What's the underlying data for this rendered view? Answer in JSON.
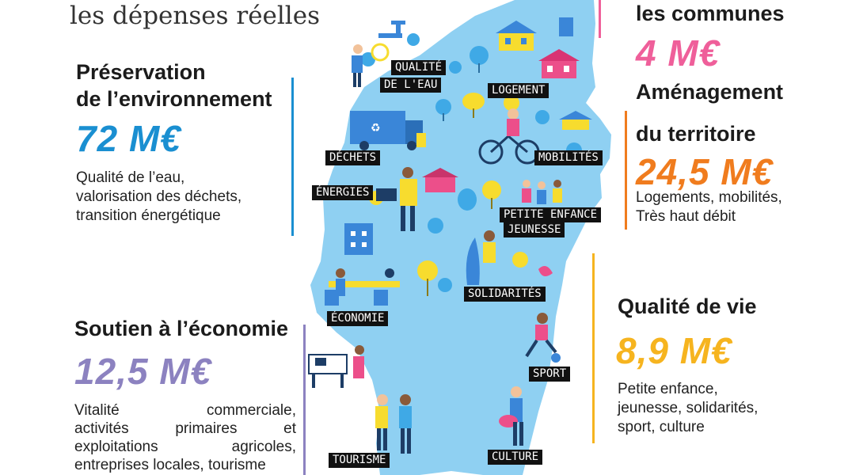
{
  "title_line": "les dépenses réelles",
  "left_top": {
    "heading_line1": "Préservation",
    "heading_line2": "de l’environnement",
    "amount": "72 M€",
    "desc_line1": "Qualité de l’eau,",
    "desc_line2": "valorisation des déchets,",
    "desc_line3": "transition énergétique",
    "color": "#1a8fd1"
  },
  "left_bottom": {
    "heading": "Soutien à l’économie",
    "amount": "12,5 M€",
    "desc_lines": [
      [
        "Vitalité",
        "commerciale,"
      ],
      [
        "activités",
        "primaires",
        "et"
      ],
      [
        "exploitations",
        "agricoles,"
      ],
      [
        "entreprises locales, tourisme"
      ]
    ],
    "color": "#8c82c0"
  },
  "right_top": {
    "heading": "les communes",
    "amount": "4 M€",
    "color": "#ef5f9a"
  },
  "right_mid": {
    "heading_line1": "Aménagement",
    "heading_line2": "du territoire",
    "amount": "24,5 M€",
    "desc_line1": "Logements, mobilités,",
    "desc_line2": "Très haut débit",
    "color": "#f07c1e"
  },
  "right_bottom": {
    "heading": "Qualité de vie",
    "amount": "8,9 M€",
    "desc_line1": "Petite enfance,",
    "desc_line2": "jeunesse, solidarités,",
    "desc_line3": "sport, culture",
    "color": "#f6b41f"
  },
  "map_tags": {
    "qualite1": "QUALITÉ",
    "qualite2": "DE L'EAU",
    "logement": "LOGEMENT",
    "dechets": "DÉCHETS",
    "mobilites": "MOBILITÉS",
    "energies": "ÉNERGIES",
    "petite_enfance": "PETITE ENFANCE",
    "jeunesse": "JEUNESSE",
    "solidarites": "SOLIDARITÉS",
    "economie": "ÉCONOMIE",
    "sport": "SPORT",
    "tourisme": "TOURISME",
    "culture": "CULTURE"
  },
  "colors": {
    "map_blue": "#8fd0f2",
    "tree_yellow": "#f7dc2e",
    "tree_blue": "#3fa9e6",
    "house_pink": "#ec4f8a",
    "house_blue": "#3a86d8"
  }
}
